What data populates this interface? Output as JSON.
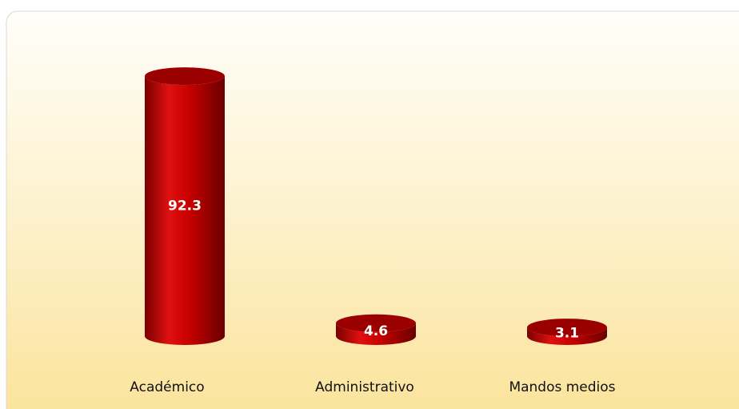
{
  "chart_data": {
    "type": "bar",
    "categories": [
      "Académico",
      "Administrativo",
      "Mandos medios"
    ],
    "values": [
      92.3,
      4.6,
      3.1
    ],
    "color": "#cc0000"
  }
}
